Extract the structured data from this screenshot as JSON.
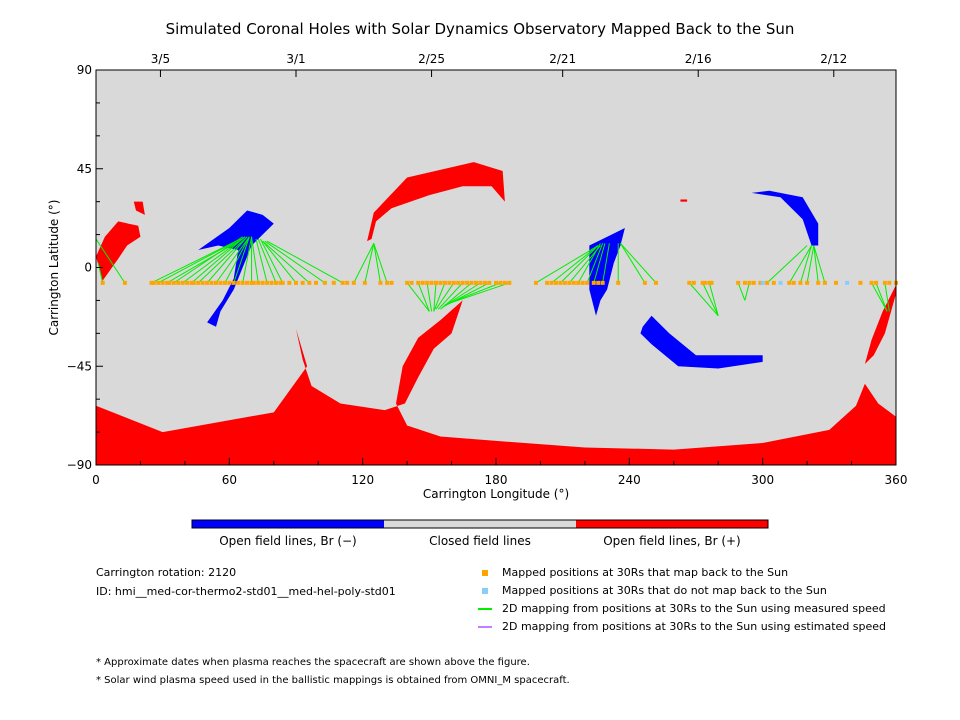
{
  "chart_data": {
    "type": "map",
    "title": "Simulated Coronal Holes with Solar Dynamics Observatory Mapped Back to the Sun",
    "xlabel": "Carrington Longitude (°)",
    "ylabel": "Carrington Latitude (°)",
    "xlim": [
      0,
      360
    ],
    "ylim": [
      -90,
      90
    ],
    "x_ticks": [
      0,
      60,
      120,
      180,
      240,
      300,
      360
    ],
    "y_ticks": [
      90,
      45,
      0,
      -45,
      -90
    ],
    "y_tick_labels": [
      "90",
      "45",
      "0",
      "−45",
      "−90"
    ],
    "top_axis_dates": [
      {
        "label": "3/5",
        "lon": 29
      },
      {
        "label": "3/1",
        "lon": 90
      },
      {
        "label": "2/25",
        "lon": 151
      },
      {
        "label": "2/21",
        "lon": 210
      },
      {
        "label": "2/16",
        "lon": 271
      },
      {
        "label": "2/12",
        "lon": 332
      }
    ],
    "colors": {
      "background": "#d9d9d9",
      "positive": "#ff0000",
      "negative": "#0000ff",
      "mapped": "#ffa500",
      "not_mapped": "#87cefa",
      "measured": "#00ee00",
      "estimated": "#c080ff"
    },
    "mapping_lat": -7,
    "mapped_points": [
      3,
      13,
      25,
      26,
      28,
      30,
      32,
      33,
      35,
      37,
      39,
      41,
      43,
      44,
      46,
      48,
      50,
      52,
      54,
      56,
      58,
      60,
      62,
      64,
      66,
      68,
      70,
      71,
      73,
      75,
      77,
      79,
      81,
      83,
      84,
      87,
      90,
      93,
      96,
      99,
      103,
      107,
      111,
      113,
      116,
      121,
      128,
      131,
      133,
      140,
      142,
      145,
      147,
      149,
      151,
      153,
      155,
      157,
      159,
      161,
      163,
      165,
      167,
      169,
      171,
      173,
      175,
      177,
      180,
      182,
      184,
      186,
      198,
      203,
      205,
      207,
      209,
      211,
      213,
      215,
      217,
      219,
      221,
      224,
      226,
      228,
      235,
      247,
      252,
      267,
      269,
      273,
      274,
      276,
      277,
      289,
      292,
      294,
      296,
      299,
      302,
      305,
      312,
      314,
      317,
      320,
      325,
      328,
      333,
      344,
      349,
      351,
      355,
      357,
      360
    ],
    "not_mapped_points": [
      300,
      308,
      338
    ],
    "mapping_lines_measured": [
      [
        3,
        1,
        2
      ],
      [
        13,
        0,
        13
      ],
      [
        25,
        65,
        13
      ],
      [
        28,
        65,
        13
      ],
      [
        32,
        66,
        13
      ],
      [
        35,
        66,
        14
      ],
      [
        39,
        67,
        14
      ],
      [
        43,
        67,
        14
      ],
      [
        46,
        68,
        14
      ],
      [
        50,
        68,
        14
      ],
      [
        54,
        69,
        14
      ],
      [
        58,
        69,
        14
      ],
      [
        62,
        69,
        14
      ],
      [
        66,
        70,
        14
      ],
      [
        70,
        70,
        14
      ],
      [
        73,
        70,
        14
      ],
      [
        77,
        72,
        13
      ],
      [
        81,
        73,
        13
      ],
      [
        84,
        74,
        13
      ],
      [
        90,
        75,
        12
      ],
      [
        96,
        75,
        12
      ],
      [
        103,
        76,
        12
      ],
      [
        111,
        77,
        12
      ],
      [
        116,
        125,
        11
      ],
      [
        121,
        125,
        11
      ],
      [
        128,
        125,
        11
      ],
      [
        131,
        125,
        11
      ],
      [
        140,
        150,
        -20
      ],
      [
        145,
        150,
        -20
      ],
      [
        149,
        151,
        -20
      ],
      [
        153,
        152,
        -20
      ],
      [
        157,
        152,
        -20
      ],
      [
        161,
        153,
        -19
      ],
      [
        165,
        154,
        -19
      ],
      [
        169,
        155,
        -19
      ],
      [
        173,
        156,
        -18
      ],
      [
        177,
        156,
        -18
      ],
      [
        182,
        157,
        -17
      ],
      [
        186,
        157,
        -17
      ],
      [
        198,
        226,
        10
      ],
      [
        205,
        226,
        10
      ],
      [
        209,
        226,
        10
      ],
      [
        213,
        227,
        10
      ],
      [
        217,
        227,
        11
      ],
      [
        221,
        228,
        11
      ],
      [
        224,
        229,
        11
      ],
      [
        228,
        231,
        11
      ],
      [
        235,
        235,
        11
      ],
      [
        247,
        236,
        11
      ],
      [
        252,
        236,
        11
      ],
      [
        267,
        280,
        -22
      ],
      [
        273,
        280,
        -22
      ],
      [
        276,
        280,
        -22
      ],
      [
        289,
        292,
        -15
      ],
      [
        294,
        292,
        -15
      ],
      [
        302,
        320,
        10
      ],
      [
        312,
        322,
        10
      ],
      [
        317,
        322,
        10
      ],
      [
        320,
        323,
        10
      ],
      [
        325,
        323,
        10
      ],
      [
        328,
        323,
        10
      ],
      [
        349,
        356,
        -20
      ],
      [
        351,
        356,
        -20
      ],
      [
        355,
        357,
        -20
      ]
    ],
    "regions_positive": [
      [
        [
          0,
          -90
        ],
        [
          360,
          -90
        ],
        [
          360,
          -68
        ],
        [
          352,
          -62
        ],
        [
          346,
          -53
        ],
        [
          342,
          -63
        ],
        [
          330,
          -74
        ],
        [
          300,
          -80
        ],
        [
          260,
          -83
        ],
        [
          220,
          -82
        ],
        [
          180,
          -79
        ],
        [
          155,
          -77
        ],
        [
          140,
          -72
        ],
        [
          135,
          -62
        ],
        [
          138,
          -45
        ],
        [
          145,
          -32
        ],
        [
          155,
          -24
        ],
        [
          165,
          -15
        ],
        [
          160,
          -30
        ],
        [
          152,
          -37
        ],
        [
          145,
          -50
        ],
        [
          139,
          -62
        ],
        [
          130,
          -65
        ],
        [
          110,
          -62
        ],
        [
          97,
          -54
        ],
        [
          93,
          -42
        ],
        [
          90,
          -28
        ],
        [
          95,
          -45
        ],
        [
          80,
          -66
        ],
        [
          30,
          -75
        ],
        [
          0,
          -63
        ]
      ],
      [
        [
          0,
          5
        ],
        [
          3,
          -6
        ],
        [
          10,
          4
        ],
        [
          14,
          10
        ],
        [
          20,
          14
        ],
        [
          19,
          19
        ],
        [
          10,
          21
        ],
        [
          4,
          14
        ]
      ],
      [
        [
          17,
          30
        ],
        [
          21,
          30
        ],
        [
          22,
          24
        ],
        [
          18,
          26
        ]
      ],
      [
        [
          122,
          12
        ],
        [
          125,
          25
        ],
        [
          140,
          41
        ],
        [
          170,
          48
        ],
        [
          183,
          44
        ],
        [
          184,
          30
        ],
        [
          178,
          37
        ],
        [
          165,
          37
        ],
        [
          150,
          33
        ],
        [
          133,
          27
        ],
        [
          126,
          21
        ],
        [
          124,
          13
        ]
      ],
      [
        [
          346,
          -44
        ],
        [
          349,
          -33
        ],
        [
          354,
          -20
        ],
        [
          360,
          -8
        ],
        [
          360,
          -12
        ],
        [
          355,
          -30
        ],
        [
          350,
          -40
        ]
      ],
      [
        [
          263,
          31
        ],
        [
          266,
          31
        ],
        [
          266,
          30
        ],
        [
          263,
          30
        ]
      ]
    ],
    "regions_negative": [
      [
        [
          46,
          8
        ],
        [
          60,
          18
        ],
        [
          68,
          26
        ],
        [
          75,
          24
        ],
        [
          80,
          20
        ],
        [
          70,
          10
        ],
        [
          64,
          -5
        ],
        [
          62,
          -10
        ],
        [
          56,
          -20
        ],
        [
          54,
          -27
        ],
        [
          50,
          -25
        ],
        [
          57,
          -15
        ],
        [
          62,
          -5
        ],
        [
          64,
          8
        ],
        [
          55,
          10
        ]
      ],
      [
        [
          222,
          10
        ],
        [
          232,
          15
        ],
        [
          238,
          18
        ],
        [
          236,
          10
        ],
        [
          233,
          2
        ],
        [
          230,
          -10
        ],
        [
          227,
          -15
        ],
        [
          225,
          -22
        ],
        [
          222,
          -10
        ]
      ],
      [
        [
          246,
          -27
        ],
        [
          250,
          -22
        ],
        [
          258,
          -30
        ],
        [
          270,
          -40
        ],
        [
          290,
          -40
        ],
        [
          300,
          -40
        ],
        [
          300,
          -43
        ],
        [
          280,
          -46
        ],
        [
          262,
          -45
        ],
        [
          250,
          -35
        ],
        [
          245,
          -30
        ]
      ],
      [
        [
          295,
          34
        ],
        [
          308,
          32
        ],
        [
          318,
          22
        ],
        [
          322,
          10
        ],
        [
          325,
          10
        ],
        [
          325,
          20
        ],
        [
          318,
          32
        ],
        [
          303,
          35
        ]
      ]
    ],
    "colorbar": {
      "segments": [
        "#0000ff",
        "#d9d9d9",
        "#ff0000"
      ],
      "labels": [
        "Open field lines, Br (−)",
        "Closed field lines",
        "Open field lines, Br (+)"
      ]
    },
    "info": {
      "rotation": "Carrington rotation: 2120",
      "id": "ID: hmi__med-cor-thermo2-std01__med-hel-poly-std01"
    },
    "legend": [
      {
        "kind": "square",
        "color": "#ffa500",
        "text": "Mapped positions at 30Rs that map back to the Sun"
      },
      {
        "kind": "square",
        "color": "#87cefa",
        "text": "Mapped positions at 30Rs that do not map back to the Sun"
      },
      {
        "kind": "line",
        "color": "#00ee00",
        "text": "2D mapping from positions at 30Rs to the Sun using measured speed"
      },
      {
        "kind": "line",
        "color": "#c080ff",
        "text": "2D mapping from positions at 30Rs to the Sun using estimated speed"
      }
    ],
    "notes": [
      "* Approximate dates when plasma reaches the spacecraft are shown above the figure.",
      "* Solar wind plasma speed used in the ballistic mappings is obtained from OMNI_M spacecraft."
    ]
  }
}
